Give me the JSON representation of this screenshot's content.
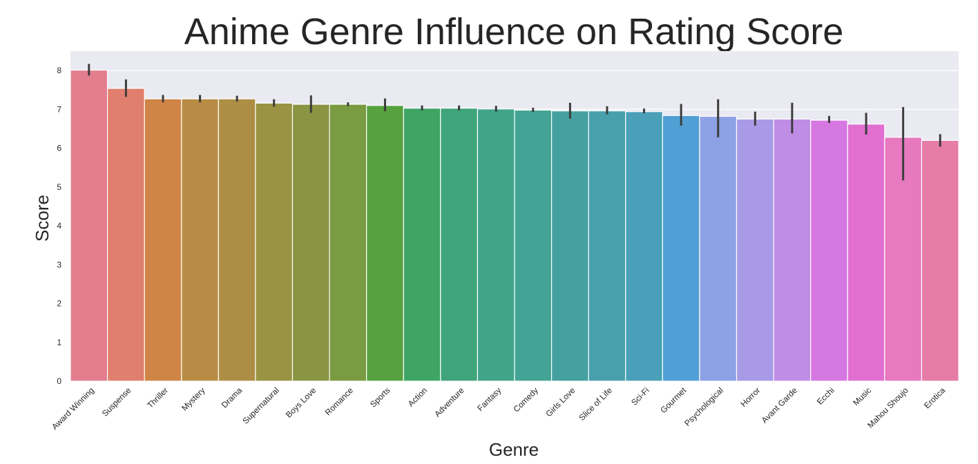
{
  "chart_data": {
    "type": "bar",
    "title": "Anime Genre Influence on Rating Score",
    "xlabel": "Genre",
    "ylabel": "Score",
    "ylim": [
      0,
      8.5
    ],
    "yticks": [
      0,
      1,
      2,
      3,
      4,
      5,
      6,
      7,
      8
    ],
    "grid": true,
    "categories": [
      "Award Winning",
      "Suspense",
      "Thriller",
      "Mystery",
      "Drama",
      "Supernatural",
      "Boys Love",
      "Romance",
      "Sports",
      "Action",
      "Adventure",
      "Fantasy",
      "Comedy",
      "Girls Love",
      "Slice of Life",
      "Sci-Fi",
      "Gourmet",
      "Psychological",
      "Horror",
      "Avant Garde",
      "Ecchi",
      "Music",
      "Mahou Shoujo",
      "Erotica"
    ],
    "values": [
      8.01,
      7.54,
      7.27,
      7.27,
      7.27,
      7.16,
      7.13,
      7.13,
      7.1,
      7.03,
      7.03,
      7.01,
      6.98,
      6.96,
      6.96,
      6.94,
      6.84,
      6.82,
      6.75,
      6.75,
      6.72,
      6.62,
      6.28,
      6.2
    ],
    "error_low": [
      7.87,
      7.32,
      7.18,
      7.18,
      7.2,
      7.07,
      6.91,
      7.08,
      6.95,
      6.97,
      6.97,
      6.94,
      6.93,
      6.76,
      6.87,
      6.9,
      6.58,
      6.28,
      6.58,
      6.38,
      6.65,
      6.35,
      5.17,
      6.04
    ],
    "error_high": [
      8.17,
      7.77,
      7.37,
      7.37,
      7.35,
      7.26,
      7.36,
      7.18,
      7.28,
      7.1,
      7.1,
      7.09,
      7.04,
      7.17,
      7.08,
      7.02,
      7.14,
      7.26,
      6.94,
      7.17,
      6.83,
      6.91,
      7.06,
      6.36
    ],
    "colors": [
      "#e47e8f",
      "#e17f6e",
      "#cf8545",
      "#b98c45",
      "#ad8e45",
      "#9a9344",
      "#899543",
      "#7b9b42",
      "#56a241",
      "#3fa565",
      "#40a47a",
      "#41a48a",
      "#43a395",
      "#45a1a0",
      "#47a0ab",
      "#49a0b8",
      "#50a0d6",
      "#8da1e6",
      "#a99ae6",
      "#c08de6",
      "#d678e2",
      "#e06fd1",
      "#e679bf",
      "#e57da6"
    ]
  }
}
